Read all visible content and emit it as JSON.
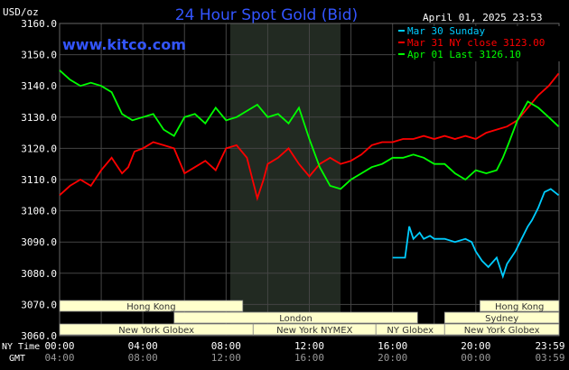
{
  "chart_data": {
    "type": "line",
    "title": "24 Hour Spot Gold (Bid)",
    "unit_label": "USD/oz",
    "site": "www.kitco.com",
    "timestamp": "April 01, 2025 23:53",
    "ylim": [
      3060,
      3160
    ],
    "yticks": [
      "3160.0",
      "3150.0",
      "3140.0",
      "3130.0",
      "3120.0",
      "3110.0",
      "3100.0",
      "3090.0",
      "3080.0",
      "3070.0",
      "3060.0"
    ],
    "xlim": [
      0,
      24
    ],
    "ny_label": "NY Time",
    "gmt_label": "GMT",
    "xticks": [
      {
        "h": 0,
        "ny": "00:00",
        "gmt": "04:00"
      },
      {
        "h": 4,
        "ny": "04:00",
        "gmt": "08:00"
      },
      {
        "h": 8,
        "ny": "08:00",
        "gmt": "12:00"
      },
      {
        "h": 12,
        "ny": "12:00",
        "gmt": "16:00"
      },
      {
        "h": 16,
        "ny": "16:00",
        "gmt": "20:00"
      },
      {
        "h": 20,
        "ny": "20:00",
        "gmt": "00:00"
      },
      {
        "h": 23.98,
        "ny": "23:59",
        "gmt": "03:59"
      }
    ],
    "nymex_shade_hours": [
      8.2,
      13.5
    ],
    "series": [
      {
        "name": "Mar 30 Sunday",
        "color": "#00ccff",
        "x": [
          16.0,
          16.6,
          16.7,
          16.8,
          17.0,
          17.3,
          17.5,
          17.8,
          18.0,
          18.5,
          19.0,
          19.5,
          19.8,
          20.0,
          20.3,
          20.6,
          21.0,
          21.3,
          21.5,
          21.7,
          21.9,
          22.2,
          22.5,
          22.7,
          23.0,
          23.3,
          23.6,
          23.98
        ],
        "y": [
          3085,
          3085,
          3090,
          3095,
          3091,
          3093,
          3091,
          3092,
          3091,
          3091,
          3090,
          3091,
          3090,
          3087,
          3084,
          3082,
          3085,
          3079,
          3083,
          3085,
          3087,
          3091,
          3095,
          3097,
          3101,
          3106,
          3107,
          3105
        ]
      },
      {
        "name": "Mar 31 NY close 3123.00",
        "color": "#ff0000",
        "x": [
          0,
          0.5,
          1.0,
          1.5,
          2.0,
          2.5,
          3.0,
          3.3,
          3.6,
          4.0,
          4.5,
          5.0,
          5.5,
          6.0,
          6.5,
          7.0,
          7.5,
          8.0,
          8.5,
          9.0,
          9.5,
          9.8,
          10.0,
          10.5,
          11.0,
          11.5,
          12.0,
          12.5,
          13.0,
          13.5,
          14.0,
          14.5,
          15.0,
          15.5,
          16.0,
          16.5,
          17.0,
          17.5,
          18.0,
          18.5,
          19.0,
          19.5,
          20.0,
          20.5,
          21.0,
          21.5,
          22.0,
          22.5,
          23.0,
          23.5,
          23.98
        ],
        "y": [
          3105,
          3108,
          3110,
          3108,
          3113,
          3117,
          3112,
          3114,
          3119,
          3120,
          3122,
          3121,
          3120,
          3112,
          3114,
          3116,
          3113,
          3120,
          3121,
          3117,
          3104,
          3110,
          3115,
          3117,
          3120,
          3115,
          3111,
          3115,
          3117,
          3115,
          3116,
          3118,
          3121,
          3122,
          3122,
          3123,
          3123,
          3124,
          3123,
          3124,
          3123,
          3124,
          3123,
          3125,
          3126,
          3127,
          3129,
          3133,
          3137,
          3140,
          3144
        ]
      },
      {
        "name": "Apr 01 Last 3126.10",
        "color": "#00ff00",
        "x": [
          0,
          0.5,
          1.0,
          1.5,
          2.0,
          2.5,
          3.0,
          3.5,
          4.0,
          4.5,
          5.0,
          5.5,
          6.0,
          6.5,
          7.0,
          7.5,
          8.0,
          8.5,
          9.0,
          9.5,
          10.0,
          10.5,
          11.0,
          11.5,
          12.0,
          12.5,
          13.0,
          13.5,
          14.0,
          14.5,
          15.0,
          15.5,
          16.0,
          16.5,
          17.0,
          17.5,
          18.0,
          18.5,
          19.0,
          19.5,
          20.0,
          20.5,
          21.0,
          21.3,
          21.6,
          22.0,
          22.5,
          23.0,
          23.5,
          23.98
        ],
        "y": [
          3145,
          3142,
          3140,
          3141,
          3140,
          3138,
          3131,
          3129,
          3130,
          3131,
          3126,
          3124,
          3130,
          3131,
          3128,
          3133,
          3129,
          3130,
          3132,
          3134,
          3130,
          3131,
          3128,
          3133,
          3123,
          3114,
          3108,
          3107,
          3110,
          3112,
          3114,
          3115,
          3117,
          3117,
          3118,
          3117,
          3115,
          3115,
          3112,
          3110,
          3113,
          3112,
          3113,
          3117,
          3122,
          3129,
          3135,
          3133,
          3130,
          3127
        ]
      }
    ],
    "sessions_row1": [
      {
        "label": "Hong Kong",
        "start": 0,
        "end": 8.8
      },
      {
        "label": "Hong Kong",
        "start": 20.2,
        "end": 24
      }
    ],
    "sessions_row2": [
      {
        "label": "London",
        "start": 5.5,
        "end": 17.2
      },
      {
        "label": "Sydney",
        "start": 18.5,
        "end": 24
      }
    ],
    "sessions_row3": [
      {
        "label": "New York Globex",
        "start": 0,
        "end": 9.3
      },
      {
        "label": "New York NYMEX",
        "start": 9.3,
        "end": 15.2
      },
      {
        "label": "NY Globex",
        "start": 15.2,
        "end": 18.5
      },
      {
        "label": "New York Globex",
        "start": 18.5,
        "end": 24
      }
    ],
    "colors": {
      "background": "#000000",
      "grid": "#444444",
      "title": "#3355ff",
      "site": "#3355ff",
      "text": "#ffffff",
      "gmt_text": "#999999",
      "session_fill": "#ffffcc",
      "session_text": "#333333",
      "nymex_shade": "#222a22"
    }
  }
}
